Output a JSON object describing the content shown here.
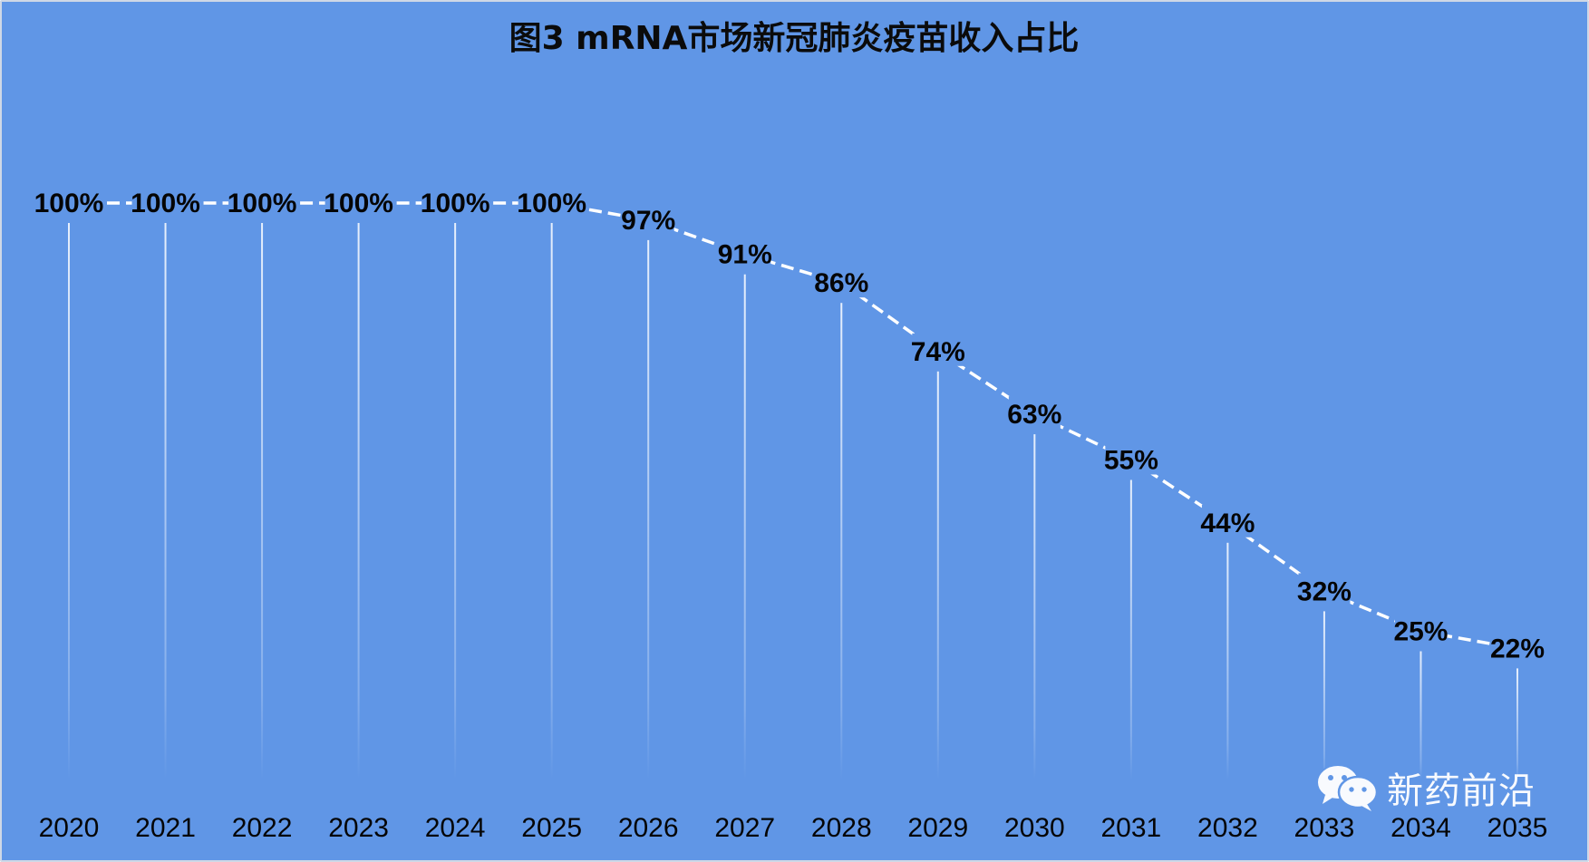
{
  "chart_data": {
    "type": "line",
    "title": "图3  mRNA市场新冠肺炎疫苗收入占比",
    "categories": [
      "2020",
      "2021",
      "2022",
      "2023",
      "2024",
      "2025",
      "2026",
      "2027",
      "2028",
      "2029",
      "2030",
      "2031",
      "2032",
      "2033",
      "2034",
      "2035"
    ],
    "series": [
      {
        "values": [
          100,
          100,
          100,
          100,
          100,
          100,
          97,
          91,
          86,
          74,
          63,
          55,
          44,
          32,
          25,
          22
        ],
        "labels": [
          "100%",
          "100%",
          "100%",
          "100%",
          "100%",
          "100%",
          "97%",
          "91%",
          "86%",
          "74%",
          "63%",
          "55%",
          "44%",
          "32%",
          "25%",
          "22%"
        ]
      }
    ],
    "y_unit": "%",
    "ylim": [
      0,
      100
    ],
    "line_style": "dashed",
    "grid": false,
    "drop_lines": true,
    "legend": "none"
  },
  "watermark": {
    "icon": "wechat-icon",
    "text": "新药前沿"
  },
  "colors": {
    "background": "#6096e6",
    "line": "#ffffff",
    "drop_line": "#e8f0fc",
    "text": "#050505"
  }
}
